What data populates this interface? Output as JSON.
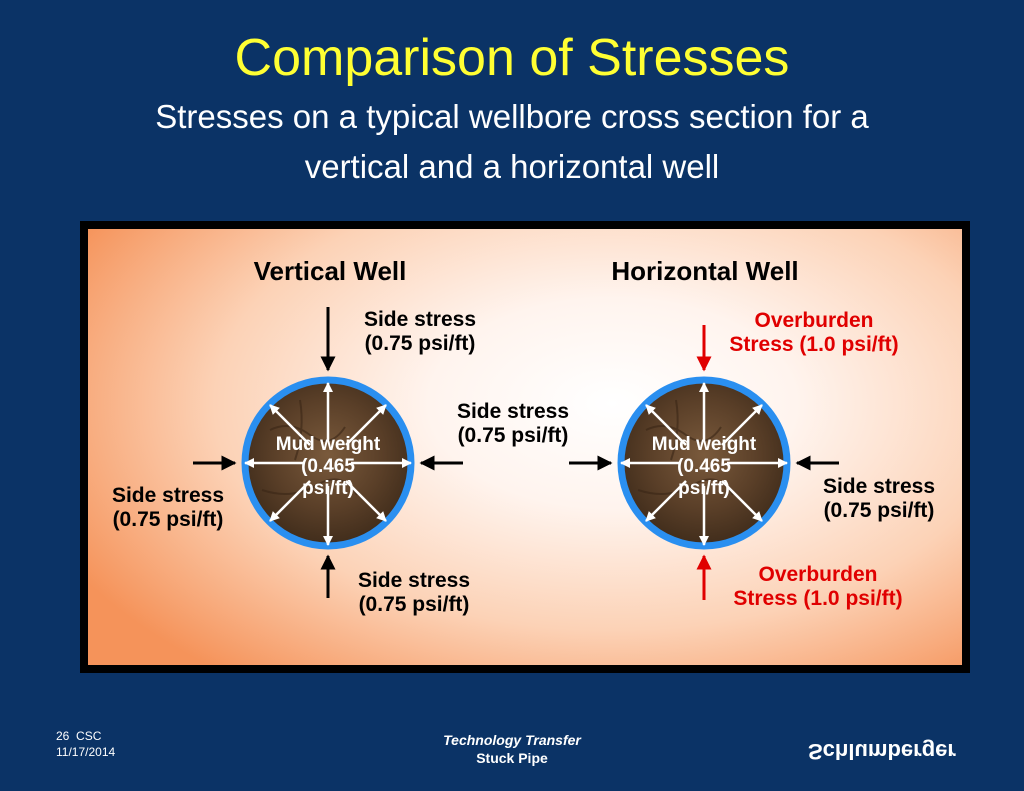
{
  "slide": {
    "title": "Comparison of Stresses",
    "subtitle_line1": "Stresses on a typical wellbore cross section for a",
    "subtitle_line2": "vertical and a horizontal well"
  },
  "vertical_well": {
    "heading": "Vertical Well",
    "top_l1": "Side stress",
    "top_l2": "(0.75 psi/ft)",
    "bottom_l1": "Side stress",
    "bottom_l2": "(0.75 psi/ft)",
    "left_l1": "Side stress",
    "left_l2": "(0.75 psi/ft)",
    "right_l1": "Side stress",
    "right_l2": "(0.75 psi/ft)",
    "mud_l1": "Mud weight",
    "mud_l2": "(0.465",
    "mud_l3": "psi/ft)"
  },
  "horizontal_well": {
    "heading": "Horizontal Well",
    "top_l1": "Overburden",
    "top_l2": "Stress (1.0 psi/ft)",
    "bottom_l1": "Overburden",
    "bottom_l2": "Stress (1.0 psi/ft)",
    "right_l1": "Side stress",
    "right_l2": "(0.75 psi/ft)",
    "mud_l1": "Mud weight",
    "mud_l2": "(0.465",
    "mud_l3": "psi/ft)"
  },
  "footer": {
    "page_number": "26",
    "org": "CSC",
    "date": "11/17/2014",
    "center_line1": "Technology Transfer",
    "center_line2": "Stuck Pipe",
    "logo_text": "Schlumberger"
  },
  "colors": {
    "background": "#0b3366",
    "title": "#ffff33",
    "overburden": "#e00000",
    "wellbore_ring": "#2a8ff0"
  }
}
